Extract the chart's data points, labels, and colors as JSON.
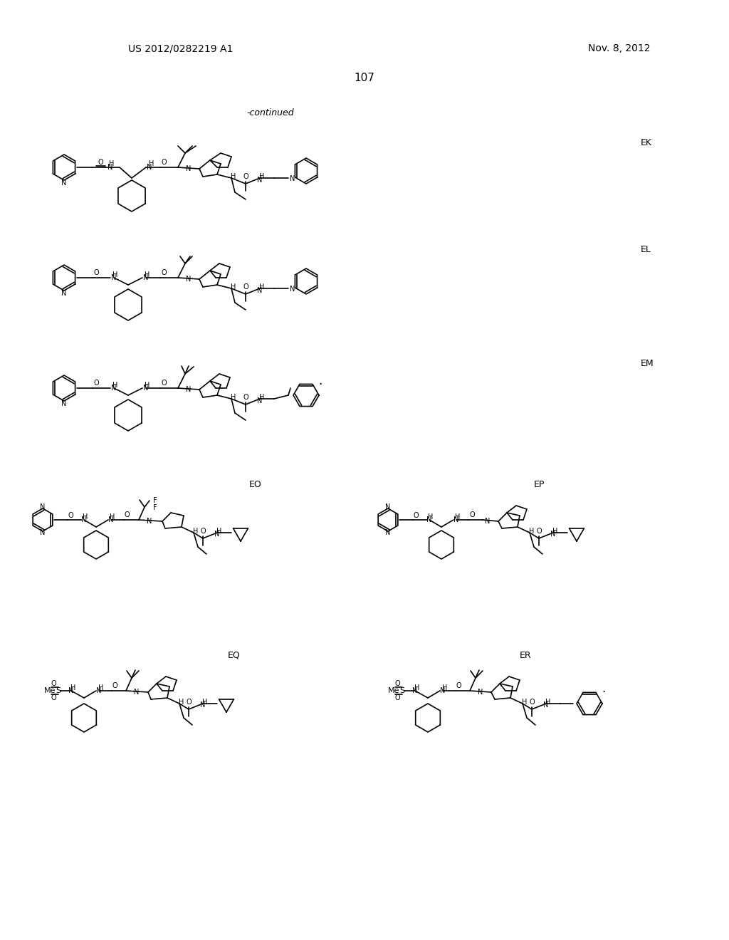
{
  "page_number": "107",
  "patent_number": "US 2012/0282219 A1",
  "patent_date": "Nov. 8, 2012",
  "continued_label": "-continued",
  "background_color": "#ffffff",
  "text_color": "#000000",
  "compound_labels": [
    "EK",
    "EL",
    "EM",
    "EO",
    "EP",
    "EQ",
    "ER"
  ],
  "figsize": [
    10.24,
    13.2
  ],
  "dpi": 100
}
